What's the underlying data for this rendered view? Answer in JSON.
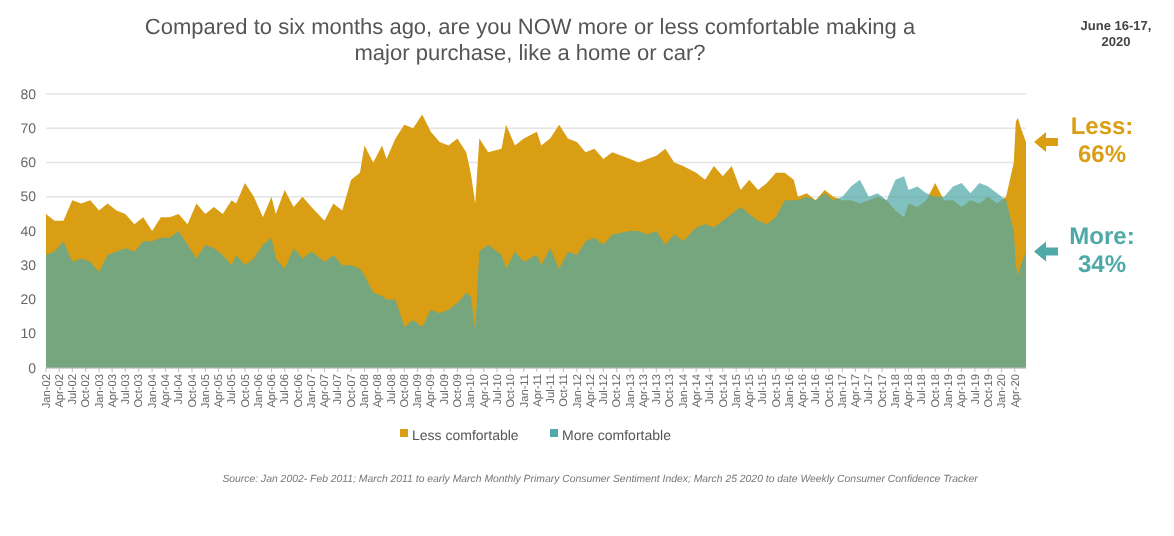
{
  "chart_data": {
    "type": "area",
    "title": "Compared to six months ago, are you NOW more or less comfortable making a major purchase, like a home or car?",
    "x": [
      "2002-01",
      "2002-03",
      "2002-05",
      "2002-07",
      "2002-09",
      "2002-11",
      "2003-01",
      "2003-03",
      "2003-05",
      "2003-07",
      "2003-09",
      "2003-11",
      "2004-01",
      "2004-03",
      "2004-05",
      "2004-07",
      "2004-09",
      "2004-11",
      "2005-01",
      "2005-03",
      "2005-05",
      "2005-07",
      "2005-08",
      "2005-10",
      "2005-12",
      "2006-02",
      "2006-04",
      "2006-05",
      "2006-07",
      "2006-09",
      "2006-11",
      "2007-01",
      "2007-04",
      "2007-06",
      "2007-08",
      "2007-10",
      "2007-12",
      "2008-01",
      "2008-03",
      "2008-05",
      "2008-06",
      "2008-08",
      "2008-10",
      "2008-12",
      "2009-02",
      "2009-04",
      "2009-06",
      "2009-08",
      "2009-10",
      "2009-12",
      "2010-01",
      "2010-02",
      "2010-03",
      "2010-05",
      "2010-08",
      "2010-09",
      "2010-11",
      "2011-01",
      "2011-04",
      "2011-05",
      "2011-07",
      "2011-09",
      "2011-11",
      "2012-01",
      "2012-03",
      "2012-05",
      "2012-07",
      "2012-09",
      "2013-01",
      "2013-03",
      "2013-05",
      "2013-07",
      "2013-09",
      "2013-11",
      "2014-01",
      "2014-04",
      "2014-06",
      "2014-08",
      "2014-10",
      "2014-12",
      "2015-02",
      "2015-04",
      "2015-06",
      "2015-08",
      "2015-10",
      "2015-12",
      "2016-02",
      "2016-03",
      "2016-05",
      "2016-07",
      "2016-09",
      "2016-11",
      "2017-01",
      "2017-03",
      "2017-05",
      "2017-07",
      "2017-09",
      "2017-11",
      "2018-01",
      "2018-03",
      "2018-04",
      "2018-06",
      "2018-08",
      "2018-10",
      "2018-12",
      "2019-02",
      "2019-04",
      "2019-06",
      "2019-08",
      "2019-10",
      "2019-12",
      "2020-02",
      "2020-03-25",
      "2020-04-08",
      "2020-04-22",
      "2020-05-13",
      "2020-06-17"
    ],
    "series": [
      {
        "name": "Less comfortable",
        "color": "#d99e14",
        "values": [
          45,
          43,
          43,
          49,
          48,
          49,
          46,
          48,
          46,
          45,
          42,
          44,
          40,
          44,
          44,
          45,
          42,
          48,
          45,
          47,
          45,
          49,
          48,
          54,
          50,
          44,
          50,
          45,
          52,
          47,
          50,
          47,
          43,
          48,
          46,
          55,
          57,
          65,
          60,
          65,
          61,
          67,
          71,
          70,
          74,
          69,
          66,
          65,
          67,
          63,
          57,
          48,
          67,
          63,
          64,
          71,
          65,
          67,
          69,
          65,
          67,
          71,
          67,
          66,
          63,
          64,
          61,
          63,
          61,
          60,
          61,
          62,
          64,
          60,
          59,
          57,
          55,
          59,
          56,
          59,
          52,
          55,
          52,
          54,
          57,
          57,
          55,
          50,
          51,
          49,
          52,
          50,
          49,
          49,
          48,
          49,
          50,
          49,
          46,
          44,
          48,
          47,
          49,
          54,
          49,
          49,
          47,
          49,
          48,
          50,
          48,
          50,
          60,
          72,
          73,
          70,
          66
        ]
      },
      {
        "name": "More comfortable",
        "color": "#4fa9a8",
        "values": [
          33,
          34,
          37,
          31,
          32,
          31,
          28,
          33,
          34,
          35,
          34,
          37,
          37,
          38,
          38,
          40,
          36,
          32,
          36,
          35,
          33,
          30,
          33,
          30,
          32,
          36,
          38,
          32,
          29,
          35,
          32,
          34,
          31,
          33,
          30,
          30,
          29,
          27,
          22,
          21,
          20,
          20,
          12,
          14,
          12,
          17,
          16,
          17,
          19,
          22,
          21,
          11,
          34,
          36,
          33,
          29,
          34,
          31,
          33,
          30,
          35,
          29,
          34,
          33,
          37,
          38,
          36,
          39,
          40,
          40,
          39,
          40,
          36,
          39,
          37,
          41,
          42,
          41,
          43,
          45,
          47,
          45,
          43,
          42,
          44,
          49,
          49,
          49,
          50,
          49,
          51,
          49,
          50,
          53,
          55,
          50,
          51,
          49,
          55,
          56,
          52,
          53,
          51,
          50,
          50,
          53,
          54,
          51,
          54,
          53,
          51,
          49,
          40,
          30,
          27,
          30,
          34
        ]
      }
    ],
    "xlim": [
      "2002-01",
      "2020-06-17"
    ],
    "ylim": [
      0,
      80
    ],
    "yticks": [
      0,
      10,
      20,
      30,
      40,
      50,
      60,
      70,
      80
    ],
    "xticks": [
      {
        "value": "2002-01",
        "label": "Jan-02"
      },
      {
        "value": "2002-04",
        "label": "Apr-02"
      },
      {
        "value": "2002-07",
        "label": "Jul-02"
      },
      {
        "value": "2002-10",
        "label": "Oct-02"
      },
      {
        "value": "2003-01",
        "label": "Jan-03"
      },
      {
        "value": "2003-04",
        "label": "Apr-03"
      },
      {
        "value": "2003-07",
        "label": "Jul-03"
      },
      {
        "value": "2003-10",
        "label": "Oct-03"
      },
      {
        "value": "2004-01",
        "label": "Jan-04"
      },
      {
        "value": "2004-04",
        "label": "Apr-04"
      },
      {
        "value": "2004-07",
        "label": "Jul-04"
      },
      {
        "value": "2004-10",
        "label": "Oct-04"
      },
      {
        "value": "2005-01",
        "label": "Jan-05"
      },
      {
        "value": "2005-04",
        "label": "Apr-05"
      },
      {
        "value": "2005-07",
        "label": "Jul-05"
      },
      {
        "value": "2005-10",
        "label": "Oct-05"
      },
      {
        "value": "2006-01",
        "label": "Jan-06"
      },
      {
        "value": "2006-04",
        "label": "Apr-06"
      },
      {
        "value": "2006-07",
        "label": "Jul-06"
      },
      {
        "value": "2006-10",
        "label": "Oct-06"
      },
      {
        "value": "2007-01",
        "label": "Jan-07"
      },
      {
        "value": "2007-04",
        "label": "Apr-07"
      },
      {
        "value": "2007-07",
        "label": "Jul-07"
      },
      {
        "value": "2007-10",
        "label": "Oct-07"
      },
      {
        "value": "2008-01",
        "label": "Jan-08"
      },
      {
        "value": "2008-04",
        "label": "Apr-08"
      },
      {
        "value": "2008-07",
        "label": "Jul-08"
      },
      {
        "value": "2008-10",
        "label": "Oct-08"
      },
      {
        "value": "2009-01",
        "label": "Jan-09"
      },
      {
        "value": "2009-04",
        "label": "Apr-09"
      },
      {
        "value": "2009-07",
        "label": "Jul-09"
      },
      {
        "value": "2009-10",
        "label": "Oct-09"
      },
      {
        "value": "2010-01",
        "label": "Jan-10"
      },
      {
        "value": "2010-04",
        "label": "Apr-10"
      },
      {
        "value": "2010-07",
        "label": "Jul-10"
      },
      {
        "value": "2010-10",
        "label": "Oct-10"
      },
      {
        "value": "2011-01",
        "label": "Jan-11"
      },
      {
        "value": "2011-04",
        "label": "Apr-11"
      },
      {
        "value": "2011-07",
        "label": "Jul-11"
      },
      {
        "value": "2011-10",
        "label": "Oct-11"
      },
      {
        "value": "2012-01",
        "label": "Jan-12"
      },
      {
        "value": "2012-04",
        "label": "Apr-12"
      },
      {
        "value": "2012-07",
        "label": "Jul-12"
      },
      {
        "value": "2012-10",
        "label": "Oct-12"
      },
      {
        "value": "2013-01",
        "label": "Jan-13"
      },
      {
        "value": "2013-04",
        "label": "Apr-13"
      },
      {
        "value": "2013-07",
        "label": "Jul-13"
      },
      {
        "value": "2013-10",
        "label": "Oct-13"
      },
      {
        "value": "2014-01",
        "label": "Jan-14"
      },
      {
        "value": "2014-04",
        "label": "Apr-14"
      },
      {
        "value": "2014-07",
        "label": "Jul-14"
      },
      {
        "value": "2014-10",
        "label": "Oct-14"
      },
      {
        "value": "2015-01",
        "label": "Jan-15"
      },
      {
        "value": "2015-04",
        "label": "Apr-15"
      },
      {
        "value": "2015-07",
        "label": "Jul-15"
      },
      {
        "value": "2015-10",
        "label": "Oct-15"
      },
      {
        "value": "2016-01",
        "label": "Jan-16"
      },
      {
        "value": "2016-04",
        "label": "Apr-16"
      },
      {
        "value": "2016-07",
        "label": "Jul-16"
      },
      {
        "value": "2016-10",
        "label": "Oct-16"
      },
      {
        "value": "2017-01",
        "label": "Jan-17"
      },
      {
        "value": "2017-04",
        "label": "Apr-17"
      },
      {
        "value": "2017-07",
        "label": "Jul-17"
      },
      {
        "value": "2017-10",
        "label": "Oct-17"
      },
      {
        "value": "2018-01",
        "label": "Jan-18"
      },
      {
        "value": "2018-04",
        "label": "Apr-18"
      },
      {
        "value": "2018-07",
        "label": "Jul-18"
      },
      {
        "value": "2018-10",
        "label": "Oct-18"
      },
      {
        "value": "2019-01",
        "label": "Jan-19"
      },
      {
        "value": "2019-04",
        "label": "Apr-19"
      },
      {
        "value": "2019-07",
        "label": "Jul-19"
      },
      {
        "value": "2019-10",
        "label": "Oct-19"
      },
      {
        "value": "2020-01",
        "label": "Jan-20"
      },
      {
        "value": "2020-04",
        "label": "Apr-20"
      }
    ],
    "grid": "y",
    "legend": "bottom",
    "annotations": [
      "June 16-17, 2020",
      {
        "text": "Less: 66%",
        "x": "2020-06-17",
        "y": 66
      },
      {
        "text": "More: 34%",
        "x": "2020-06-17",
        "y": 34
      },
      "Source: Jan 2002- Feb 2011; March 2011 to early March Monthly Primary Consumer Sentiment Index; March 25 2020 to date Weekly Consumer Confidence Tracker"
    ]
  }
}
